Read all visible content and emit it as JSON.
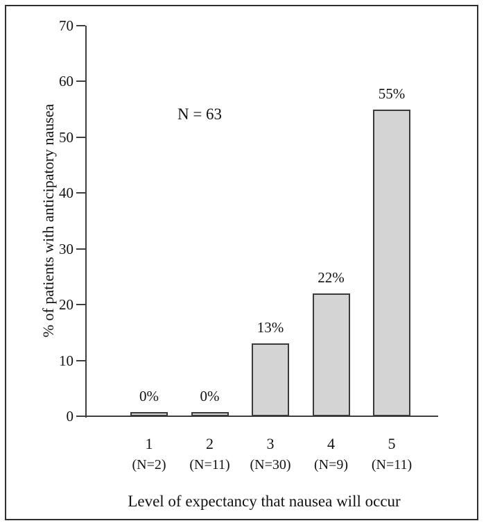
{
  "chart_data": {
    "type": "bar",
    "title": "",
    "xlabel": "Level of expectancy that nausea will occur",
    "ylabel": "% of patients with anticipatory nausea",
    "annotation": "N = 63",
    "categories": [
      "1",
      "2",
      "3",
      "4",
      "5"
    ],
    "category_sublabels": [
      "(N=2)",
      "(N=11)",
      "(N=30)",
      "(N=9)",
      "(N=11)"
    ],
    "values": [
      0,
      0,
      13,
      22,
      55
    ],
    "value_labels": [
      "0%",
      "0%",
      "13%",
      "22%",
      "55%"
    ],
    "ylim": [
      0,
      70
    ],
    "yticks": [
      0,
      10,
      20,
      30,
      40,
      50,
      60,
      70
    ],
    "ytick_labels": [
      "0",
      "10",
      "20",
      "30",
      "40",
      "50",
      "60",
      "70"
    ],
    "grid": false,
    "legend": "none",
    "colors": {
      "bar_fill": "#d4d4d4",
      "bar_border": "#3a3a3a",
      "axis": "#3e3e3e",
      "frame": "#2e2e2e",
      "text": "#121212"
    }
  }
}
